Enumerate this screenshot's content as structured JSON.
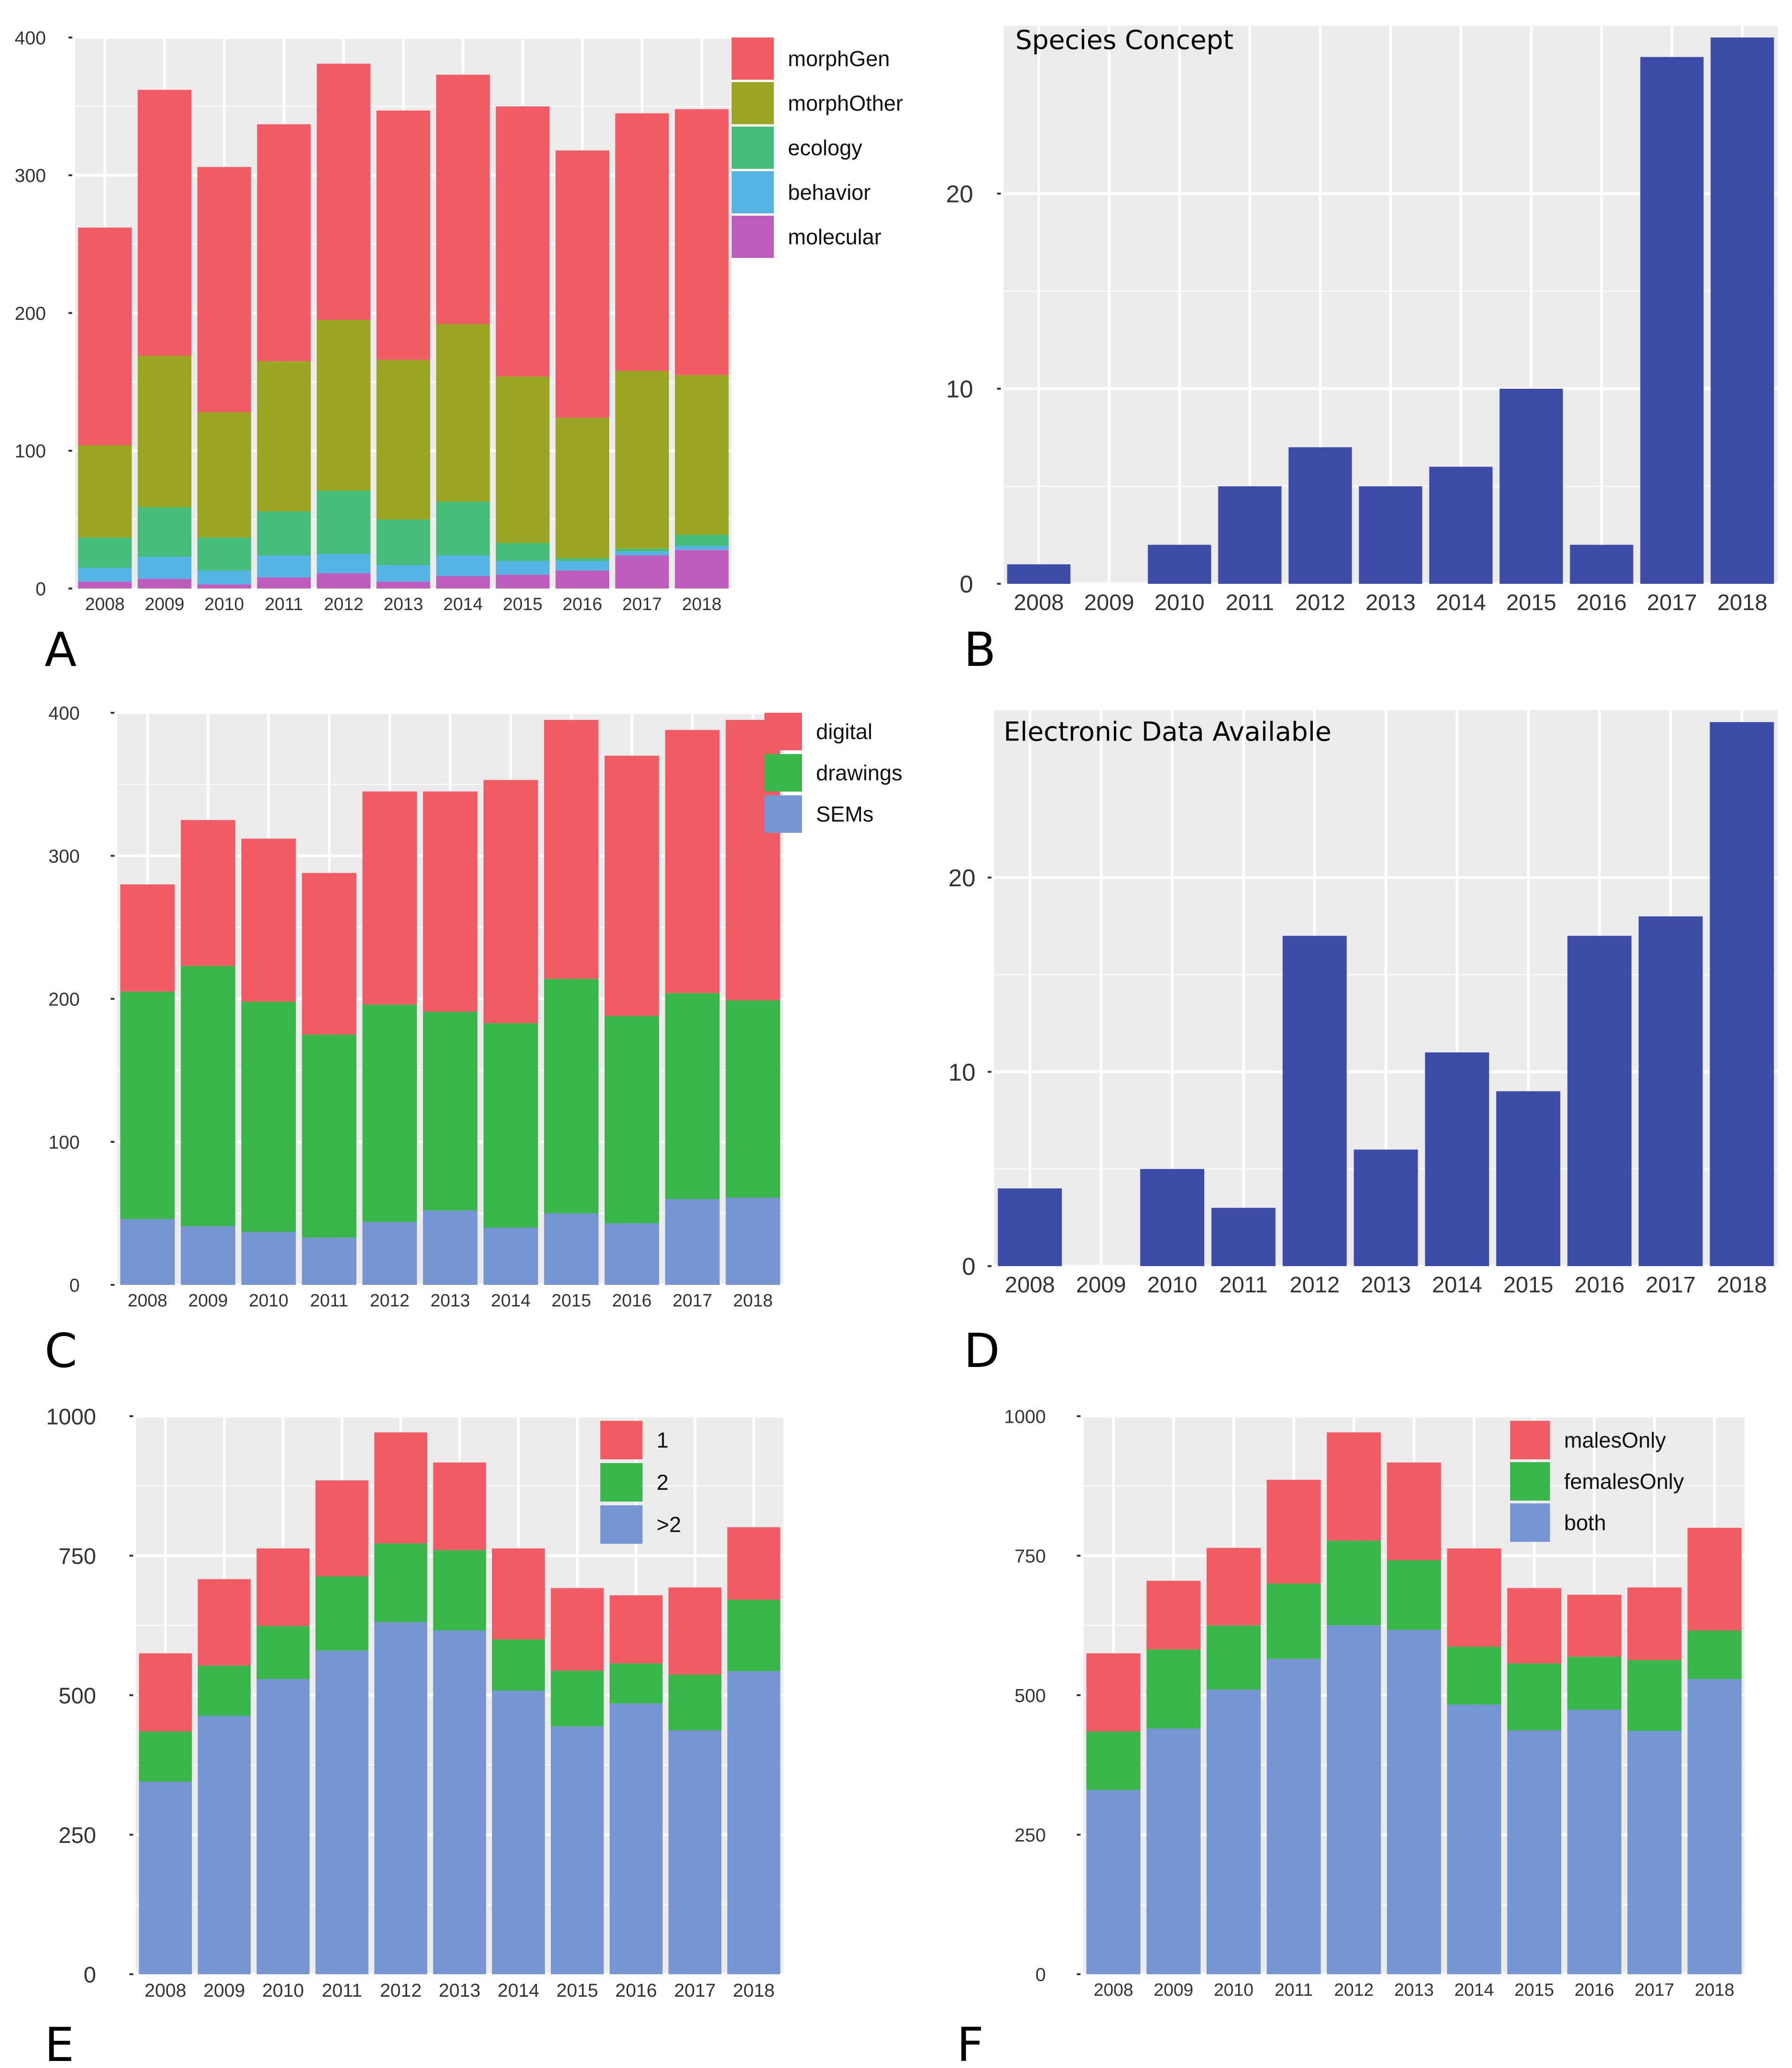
{
  "colors": {
    "panel_bg": "#ebebeb",
    "grid": "#ffffff",
    "morphGen": "#f15b66",
    "morphOther": "#9aa523",
    "ecology": "#45bd78",
    "behavior": "#56b4e4",
    "molecular": "#be5cbb",
    "digital": "#f15b66",
    "drawings": "#3ab54a",
    "SEMs": "#7795d3",
    "single": "#3d4ca6"
  },
  "chart_data": [
    {
      "id": "A",
      "panel_label": "A",
      "type": "bar",
      "stacked": true,
      "title": "",
      "xlabel": "",
      "ylabel": "",
      "categories": [
        "2008",
        "2009",
        "2010",
        "2011",
        "2012",
        "2013",
        "2014",
        "2015",
        "2016",
        "2017",
        "2018"
      ],
      "ylim": [
        0,
        400
      ],
      "yticks": [
        0,
        100,
        200,
        300,
        400
      ],
      "grid": true,
      "legend_position": "top-right",
      "series": [
        {
          "name": "molecular",
          "color_key": "molecular",
          "values": [
            5,
            7,
            3,
            8,
            11,
            5,
            9,
            10,
            13,
            24,
            28
          ]
        },
        {
          "name": "behavior",
          "color_key": "behavior",
          "values": [
            10,
            16,
            10,
            16,
            14,
            12,
            15,
            10,
            7,
            3,
            3
          ]
        },
        {
          "name": "ecology",
          "color_key": "ecology",
          "values": [
            22,
            36,
            24,
            32,
            46,
            33,
            39,
            13,
            2,
            2,
            8
          ]
        },
        {
          "name": "morphOther",
          "color_key": "morphOther",
          "values": [
            67,
            110,
            91,
            109,
            124,
            116,
            129,
            121,
            102,
            129,
            116
          ]
        },
        {
          "name": "morphGen",
          "color_key": "morphGen",
          "values": [
            158,
            193,
            178,
            172,
            186,
            181,
            181,
            196,
            194,
            187,
            193
          ]
        }
      ],
      "legend_order": [
        "morphGen",
        "morphOther",
        "ecology",
        "behavior",
        "molecular"
      ]
    },
    {
      "id": "B",
      "panel_label": "B",
      "type": "bar",
      "stacked": false,
      "title": "Species Concept",
      "xlabel": "",
      "ylabel": "",
      "categories": [
        "2008",
        "2009",
        "2010",
        "2011",
        "2012",
        "2013",
        "2014",
        "2015",
        "2016",
        "2017",
        "2018"
      ],
      "ylim": [
        0,
        28.6
      ],
      "yticks": [
        0,
        10,
        20
      ],
      "grid": true,
      "series": [
        {
          "name": "Species Concept",
          "color_key": "single",
          "values": [
            1,
            0,
            2,
            5,
            7,
            5,
            6,
            10,
            2,
            27,
            28
          ]
        }
      ]
    },
    {
      "id": "C",
      "panel_label": "C",
      "type": "bar",
      "stacked": true,
      "title": "",
      "xlabel": "",
      "ylabel": "",
      "categories": [
        "2008",
        "2009",
        "2010",
        "2011",
        "2012",
        "2013",
        "2014",
        "2015",
        "2016",
        "2017",
        "2018"
      ],
      "ylim": [
        0,
        400
      ],
      "yticks": [
        0,
        100,
        200,
        300,
        400
      ],
      "grid": true,
      "legend_position": "top-right",
      "series": [
        {
          "name": "SEMs",
          "color_key": "SEMs",
          "values": [
            46,
            41,
            37,
            33,
            44,
            52,
            40,
            50,
            43,
            60,
            61
          ]
        },
        {
          "name": "drawings",
          "color_key": "drawings",
          "values": [
            159,
            182,
            161,
            142,
            152,
            139,
            143,
            164,
            145,
            144,
            138
          ]
        },
        {
          "name": "digital",
          "color_key": "digital",
          "values": [
            75,
            102,
            114,
            113,
            149,
            154,
            170,
            181,
            182,
            184,
            196
          ]
        }
      ],
      "legend_order": [
        "digital",
        "drawings",
        "SEMs"
      ]
    },
    {
      "id": "D",
      "panel_label": "D",
      "type": "bar",
      "stacked": false,
      "title": "Electronic Data Available",
      "xlabel": "",
      "ylabel": "",
      "categories": [
        "2008",
        "2009",
        "2010",
        "2011",
        "2012",
        "2013",
        "2014",
        "2015",
        "2016",
        "2017",
        "2018"
      ],
      "ylim": [
        0,
        28.6
      ],
      "yticks": [
        0,
        10,
        20
      ],
      "grid": true,
      "series": [
        {
          "name": "Electronic Data Available",
          "color_key": "single",
          "values": [
            4,
            0,
            5,
            3,
            17,
            6,
            11,
            9,
            17,
            18,
            28
          ]
        }
      ]
    },
    {
      "id": "E",
      "panel_label": "E",
      "type": "bar",
      "stacked": true,
      "title": "",
      "xlabel": "",
      "ylabel": "",
      "categories": [
        "2008",
        "2009",
        "2010",
        "2011",
        "2012",
        "2013",
        "2014",
        "2015",
        "2016",
        "2017",
        "2018"
      ],
      "ylim": [
        0,
        1000
      ],
      "yticks": [
        0,
        250,
        500,
        750,
        1000
      ],
      "grid": true,
      "legend_position": "top-right",
      "series": [
        {
          "name": ">2",
          "color_key": "SEMs",
          "values": [
            345,
            463,
            529,
            580,
            631,
            616,
            508,
            444,
            485,
            437,
            543
          ]
        },
        {
          "name": "2",
          "color_key": "drawings",
          "values": [
            90,
            90,
            95,
            133,
            141,
            144,
            92,
            100,
            72,
            100,
            128
          ]
        },
        {
          "name": "1",
          "color_key": "digital",
          "values": [
            140,
            155,
            139,
            172,
            199,
            157,
            163,
            148,
            122,
            156,
            130
          ]
        }
      ],
      "legend_order": [
        "1",
        "2",
        ">2"
      ]
    },
    {
      "id": "F",
      "panel_label": "F",
      "type": "bar",
      "stacked": true,
      "title": "",
      "xlabel": "",
      "ylabel": "",
      "categories": [
        "2008",
        "2009",
        "2010",
        "2011",
        "2012",
        "2013",
        "2014",
        "2015",
        "2016",
        "2017",
        "2018"
      ],
      "ylim": [
        0,
        1000
      ],
      "yticks": [
        0,
        250,
        500,
        750,
        1000
      ],
      "grid": true,
      "legend_position": "top-right",
      "series": [
        {
          "name": "both",
          "color_key": "SEMs",
          "values": [
            330,
            440,
            510,
            565,
            625,
            617,
            483,
            437,
            474,
            436,
            529
          ]
        },
        {
          "name": "femalesOnly",
          "color_key": "drawings",
          "values": [
            105,
            142,
            115,
            135,
            152,
            125,
            104,
            120,
            95,
            127,
            87
          ]
        },
        {
          "name": "malesOnly",
          "color_key": "digital",
          "values": [
            140,
            123,
            139,
            186,
            194,
            175,
            176,
            135,
            111,
            130,
            184
          ]
        }
      ],
      "legend_order": [
        "malesOnly",
        "femalesOnly",
        "both"
      ]
    }
  ]
}
